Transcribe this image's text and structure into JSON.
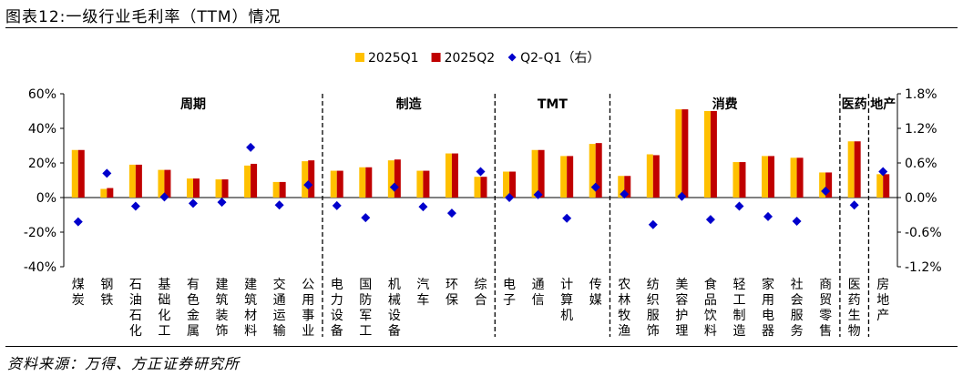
{
  "title": "图表12:一级行业毛利率（TTM）情况",
  "source": "资料来源：万得、方正证券研究所",
  "chart_data": {
    "type": "bar",
    "categories": [
      "煤炭",
      "钢铁",
      "石油石化",
      "基础化工",
      "有色金属",
      "建筑装饰",
      "建筑材料",
      "交通运输",
      "公用事业",
      "电力设备",
      "国防军工",
      "机械设备",
      "汽车",
      "环保",
      "综合",
      "电子",
      "通信",
      "计算机",
      "传媒",
      "农林牧渔",
      "纺织服饰",
      "美容护理",
      "食品饮料",
      "轻工制造",
      "家用电器",
      "社会服务",
      "商贸零售",
      "医药生物",
      "房地产"
    ],
    "series": [
      {
        "name": "2025Q1",
        "axis": "left",
        "color": "#FFC000",
        "values": [
          27.5,
          5,
          19,
          16,
          11,
          10.5,
          18.5,
          9,
          21,
          15.5,
          17.5,
          21.5,
          15.5,
          25.5,
          12,
          15,
          27.5,
          24,
          31,
          12.5,
          25,
          51,
          50,
          20.5,
          24,
          23,
          14.5,
          32.5,
          13.5
        ]
      },
      {
        "name": "2025Q2",
        "axis": "right_of_pair",
        "color": "#C00000",
        "values": [
          27.5,
          5.5,
          19,
          16,
          11,
          10.5,
          19.5,
          9,
          21.5,
          15.5,
          17.5,
          22,
          15.5,
          25.5,
          12,
          15,
          27.5,
          24,
          31.5,
          12.5,
          24.5,
          51,
          50,
          20.5,
          24,
          23,
          14.5,
          32.5,
          13.5
        ]
      },
      {
        "name": "Q2-Q1（右）",
        "type": "scatter",
        "axis": "right",
        "color": "#0000CC",
        "values": [
          -0.42,
          0.42,
          -0.15,
          0.01,
          -0.1,
          -0.08,
          0.87,
          -0.13,
          0.22,
          -0.14,
          -0.35,
          0.18,
          -0.16,
          -0.27,
          0.45,
          0,
          0.05,
          -0.36,
          0.18,
          0.06,
          -0.47,
          0.02,
          -0.38,
          -0.15,
          -0.33,
          -0.41,
          0.11,
          -0.13,
          0.45
        ]
      }
    ],
    "groups": [
      {
        "label": "周期",
        "start": 0,
        "end": 8
      },
      {
        "label": "制造",
        "start": 9,
        "end": 14
      },
      {
        "label": "TMT",
        "start": 15,
        "end": 18
      },
      {
        "label": "消费",
        "start": 19,
        "end": 26
      },
      {
        "label": "医药",
        "start": 27,
        "end": 27
      },
      {
        "label": "地产",
        "start": 28,
        "end": 28
      }
    ],
    "yaxis_left": {
      "min": -40,
      "max": 60,
      "step": 20,
      "tick_labels": [
        "60%",
        "40%",
        "20%",
        "0%",
        "-20%",
        "-40%"
      ]
    },
    "yaxis_right": {
      "min": -1.2,
      "max": 1.8,
      "step": 0.6,
      "tick_labels": [
        "1.8%",
        "1.2%",
        "0.6%",
        "0.0%",
        "-0.6%",
        "-1.2%"
      ]
    },
    "legend": {
      "position": "top-center"
    },
    "grid": false
  }
}
